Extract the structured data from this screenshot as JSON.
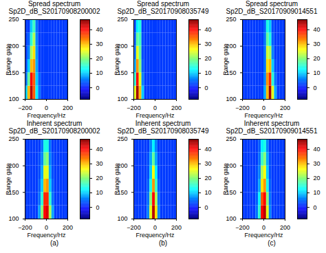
{
  "chart_data": [
    {
      "type": "heatmap",
      "title": "Spread spectrum",
      "subtitle": "Sp2D_dB_S20170908200002",
      "xlabel": "Frequency/Hz",
      "ylabel": "Range gate",
      "xlim": [
        -200,
        200
      ],
      "ylim": [
        100,
        250
      ],
      "xticks": [
        -200,
        0,
        200
      ],
      "yticks": [
        100,
        150,
        200,
        250
      ],
      "x_edges": [
        -200,
        -175,
        -150,
        -125,
        -100,
        -75,
        -50,
        -25,
        0,
        25,
        50,
        75,
        100,
        125,
        150,
        175,
        200
      ],
      "y_edges": [
        100,
        125,
        150,
        175,
        200,
        225,
        250
      ],
      "cells": [
        [
          10,
          30,
          44,
          35,
          12,
          5,
          2,
          2,
          2,
          2,
          2,
          2,
          2,
          2,
          2,
          2
        ],
        [
          5,
          18,
          40,
          35,
          10,
          4,
          2,
          2,
          2,
          2,
          2,
          2,
          2,
          2,
          2,
          2
        ],
        [
          3,
          10,
          30,
          32,
          8,
          2,
          2,
          2,
          2,
          2,
          2,
          2,
          2,
          2,
          2,
          2
        ],
        [
          2,
          6,
          22,
          28,
          7,
          2,
          2,
          2,
          2,
          2,
          2,
          2,
          2,
          2,
          2,
          2
        ],
        [
          2,
          4,
          15,
          22,
          6,
          2,
          2,
          2,
          2,
          2,
          2,
          2,
          2,
          2,
          2,
          2
        ],
        [
          2,
          2,
          10,
          16,
          5,
          2,
          2,
          2,
          2,
          2,
          2,
          2,
          2,
          2,
          2,
          2
        ]
      ],
      "colorbar": {
        "range": [
          -8,
          47
        ],
        "ticks": [
          0,
          10,
          20,
          30,
          40
        ]
      }
    },
    {
      "type": "heatmap",
      "title": "Spread spectrum",
      "subtitle": "Sp2D_dB_S20170908035749",
      "xlabel": "Frequency/Hz",
      "ylabel": "Range gate",
      "xlim": [
        -200,
        200
      ],
      "ylim": [
        100,
        250
      ],
      "xticks": [
        -200,
        0,
        200
      ],
      "yticks": [
        100,
        150,
        200,
        250
      ],
      "x_edges": [
        -200,
        -175,
        -150,
        -125,
        -100,
        -75,
        -50,
        -25,
        0,
        25,
        50,
        75,
        100,
        125,
        150,
        175,
        200
      ],
      "y_edges": [
        100,
        125,
        150,
        175,
        200,
        225,
        250
      ],
      "cells": [
        [
          25,
          45,
          30,
          10,
          2,
          2,
          2,
          2,
          2,
          2,
          2,
          2,
          2,
          2,
          2,
          2
        ],
        [
          15,
          40,
          25,
          6,
          2,
          2,
          2,
          2,
          2,
          2,
          2,
          2,
          2,
          2,
          2,
          2
        ],
        [
          8,
          32,
          20,
          4,
          2,
          2,
          2,
          2,
          2,
          2,
          2,
          2,
          2,
          2,
          2,
          2
        ],
        [
          5,
          25,
          18,
          3,
          2,
          2,
          2,
          2,
          2,
          2,
          2,
          2,
          2,
          2,
          2,
          2
        ],
        [
          4,
          18,
          16,
          3,
          2,
          2,
          2,
          2,
          2,
          2,
          2,
          2,
          2,
          2,
          2,
          2
        ],
        [
          3,
          12,
          14,
          2,
          2,
          2,
          2,
          2,
          2,
          2,
          2,
          2,
          2,
          2,
          2,
          2
        ]
      ],
      "colorbar": {
        "range": [
          -8,
          47
        ],
        "ticks": [
          0,
          10,
          20,
          30,
          40
        ]
      }
    },
    {
      "type": "heatmap",
      "title": "Spread spectrum",
      "subtitle": "Sp2D_dB_S20170909014551",
      "xlabel": "Frequency/Hz",
      "ylabel": "Range gate",
      "xlim": [
        -200,
        200
      ],
      "ylim": [
        100,
        250
      ],
      "xticks": [
        -200,
        0,
        200
      ],
      "yticks": [
        100,
        150,
        200,
        250
      ],
      "x_edges": [
        -200,
        -175,
        -150,
        -125,
        -100,
        -75,
        -50,
        -25,
        0,
        25,
        50,
        75,
        100,
        125,
        150,
        175,
        200
      ],
      "y_edges": [
        100,
        125,
        150,
        175,
        200,
        225,
        250
      ],
      "cells": [
        [
          2,
          2,
          2,
          2,
          2,
          2,
          2,
          2,
          8,
          30,
          45,
          25,
          8,
          2,
          2,
          2
        ],
        [
          2,
          2,
          2,
          2,
          2,
          2,
          2,
          2,
          6,
          32,
          38,
          15,
          5,
          2,
          2,
          2
        ],
        [
          2,
          2,
          2,
          2,
          2,
          2,
          2,
          2,
          5,
          28,
          30,
          10,
          3,
          2,
          2,
          2
        ],
        [
          2,
          2,
          2,
          2,
          2,
          2,
          2,
          2,
          5,
          24,
          22,
          6,
          2,
          2,
          2,
          2
        ],
        [
          2,
          2,
          2,
          2,
          2,
          2,
          2,
          2,
          5,
          18,
          14,
          4,
          2,
          2,
          2,
          2
        ],
        [
          2,
          2,
          2,
          2,
          2,
          2,
          2,
          2,
          4,
          14,
          10,
          3,
          2,
          2,
          2,
          2
        ]
      ],
      "colorbar": {
        "range": [
          -8,
          47
        ],
        "ticks": [
          0,
          10,
          20,
          30,
          40
        ]
      }
    },
    {
      "type": "heatmap",
      "title": "Inherent spectrum",
      "subtitle": "Sp2D_dB_S20170908200002",
      "xlabel": "Frequency/Hz",
      "ylabel": "Range gate",
      "xlim": [
        -200,
        200
      ],
      "ylim": [
        100,
        250
      ],
      "xticks": [
        -200,
        0,
        200
      ],
      "yticks": [
        100,
        150,
        200,
        250
      ],
      "x_edges": [
        -200,
        -175,
        -150,
        -125,
        -100,
        -75,
        -50,
        -25,
        0,
        25,
        50,
        75,
        100,
        125,
        150,
        175,
        200
      ],
      "y_edges": [
        100,
        125,
        150,
        175,
        200,
        225,
        250
      ],
      "cells": [
        [
          2,
          2,
          2,
          2,
          2,
          8,
          20,
          40,
          42,
          22,
          8,
          2,
          2,
          2,
          2,
          2
        ],
        [
          2,
          2,
          2,
          2,
          2,
          5,
          15,
          38,
          38,
          15,
          5,
          2,
          2,
          2,
          2,
          2
        ],
        [
          2,
          2,
          2,
          2,
          2,
          4,
          10,
          30,
          32,
          10,
          4,
          2,
          2,
          2,
          2,
          2
        ],
        [
          2,
          2,
          2,
          2,
          2,
          3,
          8,
          25,
          25,
          8,
          3,
          2,
          2,
          2,
          2,
          2
        ],
        [
          2,
          2,
          2,
          2,
          2,
          3,
          6,
          18,
          20,
          6,
          3,
          2,
          2,
          2,
          2,
          2
        ],
        [
          2,
          2,
          2,
          2,
          2,
          2,
          5,
          14,
          14,
          5,
          2,
          2,
          2,
          2,
          2,
          2
        ]
      ],
      "colorbar": {
        "range": [
          -8,
          47
        ],
        "ticks": [
          0,
          10,
          20,
          30,
          40
        ]
      },
      "caption": "(a)"
    },
    {
      "type": "heatmap",
      "title": "Inherent spectrum",
      "subtitle": "Sp2D_dB_S20170908035749",
      "xlabel": "Frequency/Hz",
      "ylabel": "Range gate",
      "xlim": [
        -200,
        200
      ],
      "ylim": [
        100,
        250
      ],
      "xticks": [
        -200,
        0,
        200
      ],
      "yticks": [
        100,
        150,
        200,
        250
      ],
      "x_edges": [
        -200,
        -175,
        -150,
        -125,
        -100,
        -75,
        -50,
        -25,
        0,
        25,
        50,
        75,
        100,
        125,
        150,
        175,
        200
      ],
      "y_edges": [
        100,
        125,
        150,
        175,
        200,
        225,
        250
      ],
      "cells": [
        [
          2,
          2,
          2,
          2,
          2,
          6,
          25,
          44,
          28,
          6,
          2,
          2,
          2,
          2,
          2,
          2
        ],
        [
          2,
          2,
          2,
          2,
          2,
          5,
          20,
          40,
          22,
          5,
          2,
          2,
          2,
          2,
          2,
          2
        ],
        [
          2,
          2,
          2,
          2,
          2,
          4,
          14,
          32,
          16,
          4,
          2,
          2,
          2,
          2,
          2,
          2
        ],
        [
          2,
          2,
          2,
          2,
          2,
          3,
          10,
          26,
          12,
          3,
          2,
          2,
          2,
          2,
          2,
          2
        ],
        [
          2,
          2,
          2,
          2,
          2,
          3,
          8,
          18,
          8,
          3,
          2,
          2,
          2,
          2,
          2,
          2
        ],
        [
          2,
          2,
          2,
          2,
          2,
          2,
          6,
          12,
          6,
          2,
          2,
          2,
          2,
          2,
          2,
          2
        ]
      ],
      "colorbar": {
        "range": [
          -8,
          47
        ],
        "ticks": [
          0,
          10,
          20,
          30,
          40
        ]
      },
      "caption": "(b)"
    },
    {
      "type": "heatmap",
      "title": "Inherent spectrum",
      "subtitle": "Sp2D_dB_S20170909014551",
      "xlabel": "Frequency/Hz",
      "ylabel": "Range gate",
      "xlim": [
        -200,
        200
      ],
      "ylim": [
        100,
        250
      ],
      "xticks": [
        -200,
        0,
        200
      ],
      "yticks": [
        100,
        150,
        200,
        250
      ],
      "x_edges": [
        -200,
        -175,
        -150,
        -125,
        -100,
        -75,
        -50,
        -25,
        0,
        25,
        50,
        75,
        100,
        125,
        150,
        175,
        200
      ],
      "y_edges": [
        100,
        125,
        150,
        175,
        200,
        225,
        250
      ],
      "cells": [
        [
          2,
          2,
          2,
          2,
          2,
          5,
          15,
          40,
          44,
          25,
          6,
          2,
          2,
          2,
          2,
          2
        ],
        [
          2,
          2,
          2,
          2,
          2,
          4,
          12,
          36,
          40,
          20,
          5,
          2,
          2,
          2,
          2,
          2
        ],
        [
          2,
          2,
          2,
          2,
          2,
          3,
          8,
          28,
          32,
          14,
          4,
          2,
          2,
          2,
          2,
          2
        ],
        [
          2,
          2,
          2,
          2,
          2,
          3,
          6,
          22,
          26,
          10,
          3,
          2,
          2,
          2,
          2,
          2
        ],
        [
          2,
          2,
          2,
          2,
          2,
          2,
          5,
          16,
          20,
          8,
          3,
          2,
          2,
          2,
          2,
          2
        ],
        [
          2,
          2,
          2,
          2,
          2,
          2,
          4,
          12,
          14,
          6,
          2,
          2,
          2,
          2,
          2,
          2
        ]
      ],
      "colorbar": {
        "range": [
          -8,
          47
        ],
        "ticks": [
          0,
          10,
          20,
          30,
          40
        ]
      },
      "caption": "(c)"
    }
  ]
}
